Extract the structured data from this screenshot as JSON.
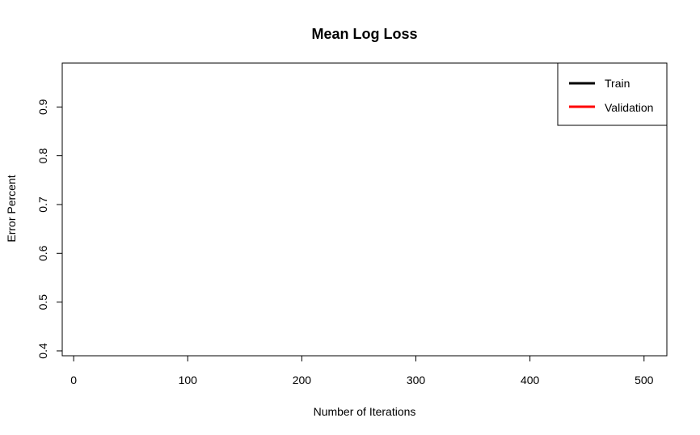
{
  "chart_data": {
    "type": "line",
    "title": "Mean Log Loss",
    "xlabel": "Number of Iterations",
    "ylabel": "Error Percent",
    "xlim": [
      -10,
      520
    ],
    "ylim": [
      0.39,
      0.99
    ],
    "x_ticks": [
      0,
      100,
      200,
      300,
      400,
      500
    ],
    "y_ticks": [
      0.4,
      0.5,
      0.6,
      0.7,
      0.8,
      0.9
    ],
    "grid": false,
    "legend_position": "top-right",
    "series": [
      {
        "name": "Train",
        "color": "#000000",
        "x": [],
        "y": []
      },
      {
        "name": "Validation",
        "color": "#ff0000",
        "x": [],
        "y": []
      }
    ]
  }
}
